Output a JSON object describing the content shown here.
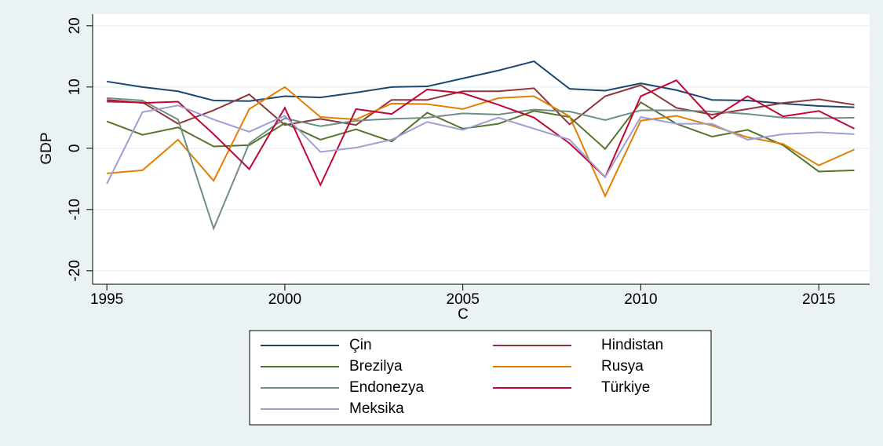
{
  "chart_data": {
    "type": "line",
    "x": [
      1995,
      1996,
      1997,
      1998,
      1999,
      2000,
      2001,
      2002,
      2003,
      2004,
      2005,
      2006,
      2007,
      2008,
      2009,
      2010,
      2011,
      2012,
      2013,
      2014,
      2015,
      2016
    ],
    "x_label": "C",
    "y_label": "GDP",
    "xlim": [
      1994.6,
      2016.43
    ],
    "ylim": [
      -22.2,
      21.9
    ],
    "xticks": [
      1995,
      2000,
      2005,
      2010,
      2015
    ],
    "yticks": [
      -20,
      -10,
      0,
      10,
      20
    ],
    "grid": true,
    "series": [
      {
        "name": "Çin",
        "color": "#1a476f",
        "values": [
          10.9,
          10.0,
          9.3,
          7.8,
          7.7,
          8.5,
          8.3,
          9.1,
          10.0,
          10.1,
          11.4,
          12.7,
          14.2,
          9.7,
          9.4,
          10.6,
          9.5,
          7.9,
          7.8,
          7.3,
          6.9,
          6.7
        ]
      },
      {
        "name": "Hindistan",
        "color": "#90353b",
        "values": [
          7.6,
          7.5,
          4.0,
          6.2,
          8.8,
          3.8,
          4.8,
          3.8,
          7.9,
          7.9,
          9.3,
          9.3,
          9.8,
          3.9,
          8.5,
          10.3,
          6.6,
          5.5,
          6.4,
          7.4,
          8.0,
          7.1
        ]
      },
      {
        "name": "Brezilya",
        "color": "#55752f",
        "values": [
          4.4,
          2.2,
          3.4,
          0.3,
          0.5,
          4.1,
          1.4,
          3.1,
          1.1,
          5.8,
          3.2,
          4.0,
          6.1,
          5.1,
          -0.1,
          7.5,
          4.0,
          1.9,
          3.0,
          0.5,
          -3.8,
          -3.6
        ]
      },
      {
        "name": "Rusya",
        "color": "#e37e00",
        "values": [
          -4.1,
          -3.6,
          1.4,
          -5.3,
          6.4,
          10.0,
          5.1,
          4.7,
          7.3,
          7.2,
          6.4,
          8.2,
          8.5,
          5.2,
          -7.8,
          4.5,
          5.3,
          3.7,
          1.8,
          0.7,
          -2.8,
          -0.2
        ]
      },
      {
        "name": "Endonezya",
        "color": "#6e8e84",
        "values": [
          8.2,
          7.8,
          4.7,
          -13.1,
          0.8,
          4.9,
          3.6,
          4.5,
          4.8,
          5.0,
          5.7,
          5.5,
          6.3,
          6.0,
          4.6,
          6.2,
          6.2,
          6.0,
          5.6,
          5.0,
          4.9,
          5.0
        ]
      },
      {
        "name": "Türkiye",
        "color": "#c10534",
        "values": [
          7.9,
          7.4,
          7.6,
          2.3,
          -3.4,
          6.6,
          -6.0,
          6.4,
          5.6,
          9.6,
          9.0,
          7.1,
          5.0,
          0.8,
          -4.7,
          8.5,
          11.1,
          4.8,
          8.5,
          5.2,
          6.1,
          3.2
        ]
      },
      {
        "name": "Meksika",
        "color": "#9e9ed6",
        "values": [
          -5.8,
          5.9,
          7.0,
          4.7,
          2.7,
          5.3,
          -0.6,
          0.1,
          1.4,
          4.3,
          3.0,
          5.0,
          3.2,
          1.4,
          -4.7,
          5.1,
          4.0,
          4.0,
          1.4,
          2.3,
          2.6,
          2.3
        ]
      }
    ]
  }
}
